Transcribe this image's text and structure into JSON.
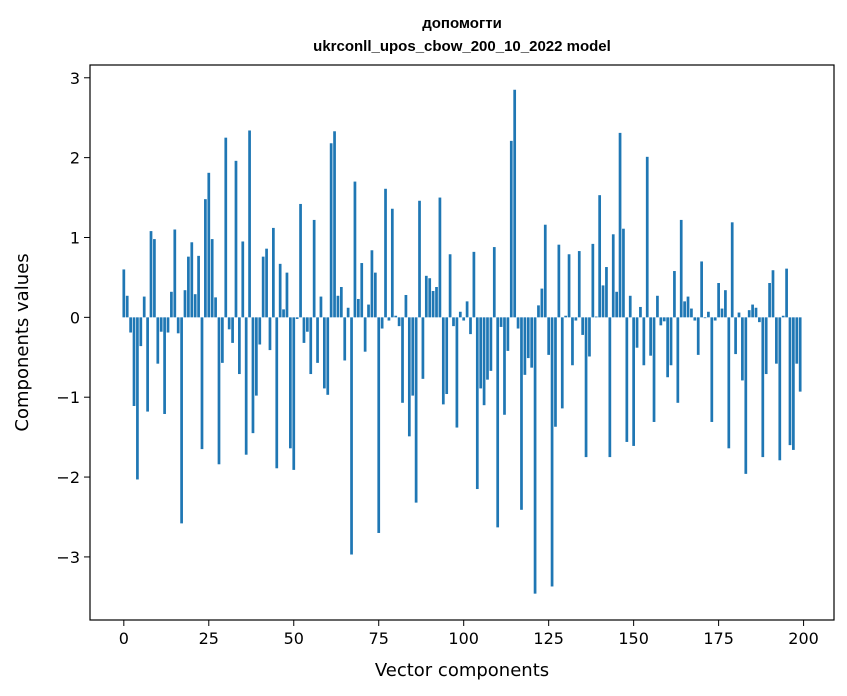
{
  "chart_data": {
    "type": "bar",
    "title": "допомогти",
    "subtitle": "ukrconll_upos_cbow_200_10_2022 model",
    "xlabel": "Vector components",
    "ylabel": "Components values",
    "xlim": [
      -9.95,
      208.95
    ],
    "ylim": [
      -3.79,
      3.16
    ],
    "xticks": [
      0,
      25,
      50,
      75,
      100,
      125,
      150,
      175,
      200
    ],
    "yticks": [
      -3,
      -2,
      -1,
      0,
      1,
      2,
      3
    ],
    "ytick_labels": [
      "−3",
      "−2",
      "−1",
      "0",
      "1",
      "2",
      "3"
    ],
    "grid": false,
    "bar_color": "#1f77b4",
    "x": [
      0,
      1,
      2,
      3,
      4,
      5,
      6,
      7,
      8,
      9,
      10,
      11,
      12,
      13,
      14,
      15,
      16,
      17,
      18,
      19,
      20,
      21,
      22,
      23,
      24,
      25,
      26,
      27,
      28,
      29,
      30,
      31,
      32,
      33,
      34,
      35,
      36,
      37,
      38,
      39,
      40,
      41,
      42,
      43,
      44,
      45,
      46,
      47,
      48,
      49,
      50,
      51,
      52,
      53,
      54,
      55,
      56,
      57,
      58,
      59,
      60,
      61,
      62,
      63,
      64,
      65,
      66,
      67,
      68,
      69,
      70,
      71,
      72,
      73,
      74,
      75,
      76,
      77,
      78,
      79,
      80,
      81,
      82,
      83,
      84,
      85,
      86,
      87,
      88,
      89,
      90,
      91,
      92,
      93,
      94,
      95,
      96,
      97,
      98,
      99,
      100,
      101,
      102,
      103,
      104,
      105,
      106,
      107,
      108,
      109,
      110,
      111,
      112,
      113,
      114,
      115,
      116,
      117,
      118,
      119,
      120,
      121,
      122,
      123,
      124,
      125,
      126,
      127,
      128,
      129,
      130,
      131,
      132,
      133,
      134,
      135,
      136,
      137,
      138,
      139,
      140,
      141,
      142,
      143,
      144,
      145,
      146,
      147,
      148,
      149,
      150,
      151,
      152,
      153,
      154,
      155,
      156,
      157,
      158,
      159,
      160,
      161,
      162,
      163,
      164,
      165,
      166,
      167,
      168,
      169,
      170,
      171,
      172,
      173,
      174,
      175,
      176,
      177,
      178,
      179,
      180,
      181,
      182,
      183,
      184,
      185,
      186,
      187,
      188,
      189,
      190,
      191,
      192,
      193,
      194,
      195,
      196,
      197,
      198,
      199
    ],
    "values": [
      0.6,
      0.27,
      -0.19,
      -1.11,
      -2.03,
      -0.36,
      0.26,
      -1.18,
      1.08,
      0.98,
      -0.58,
      -0.18,
      -1.21,
      -0.19,
      0.32,
      1.1,
      -0.2,
      -2.58,
      0.34,
      0.76,
      0.94,
      0.29,
      0.77,
      -1.65,
      1.48,
      1.81,
      0.98,
      0.25,
      -1.84,
      -0.57,
      2.25,
      -0.15,
      -0.32,
      1.96,
      -0.71,
      0.95,
      -1.72,
      2.34,
      -1.45,
      -0.98,
      -0.34,
      0.76,
      0.86,
      -0.41,
      1.12,
      -1.89,
      0.67,
      0.1,
      0.56,
      -1.64,
      -1.91,
      -0.02,
      1.42,
      -0.32,
      -0.18,
      -0.71,
      1.22,
      -0.57,
      0.26,
      -0.89,
      -0.97,
      2.18,
      2.33,
      0.27,
      0.38,
      -0.54,
      0.12,
      -2.97,
      1.7,
      0.23,
      0.68,
      -0.43,
      0.16,
      0.84,
      0.56,
      -2.7,
      -0.14,
      1.61,
      -0.04,
      1.36,
      0.02,
      -0.11,
      -1.07,
      0.28,
      -1.49,
      -0.98,
      -2.32,
      1.46,
      -0.77,
      0.52,
      0.49,
      0.33,
      0.38,
      1.5,
      -1.09,
      -0.96,
      0.79,
      -0.11,
      -1.38,
      0.07,
      -0.04,
      0.2,
      -0.21,
      0.82,
      -2.15,
      -0.89,
      -1.1,
      -0.78,
      -0.67,
      0.88,
      -2.63,
      -0.12,
      -1.22,
      -0.42,
      2.21,
      2.85,
      -0.14,
      -2.41,
      -0.72,
      -0.51,
      -0.63,
      -3.46,
      0.15,
      0.36,
      1.16,
      -0.47,
      -3.37,
      -1.37,
      0.91,
      -1.14,
      0.02,
      0.79,
      -0.6,
      -0.04,
      0.83,
      -0.22,
      -1.75,
      -0.49,
      0.92,
      0.01,
      1.53,
      0.4,
      0.63,
      -1.75,
      1.04,
      0.32,
      2.31,
      1.11,
      -1.56,
      0.27,
      -1.61,
      -0.38,
      0.13,
      -0.6,
      2.01,
      -0.48,
      -1.31,
      0.27,
      -0.1,
      -0.05,
      -0.75,
      -0.6,
      0.58,
      -1.07,
      1.22,
      0.2,
      0.26,
      0.11,
      -0.04,
      -0.47,
      0.7,
      -0.01,
      0.07,
      -1.31,
      -0.04,
      0.43,
      0.11,
      0.34,
      -1.64,
      1.19,
      -0.46,
      0.06,
      -0.79,
      -1.96,
      0.09,
      0.16,
      0.12,
      -0.06,
      -1.75,
      -0.71,
      0.43,
      0.59,
      -0.58,
      -1.79,
      0.02,
      0.61,
      -1.6,
      -1.66,
      -0.58,
      -0.93
    ]
  }
}
